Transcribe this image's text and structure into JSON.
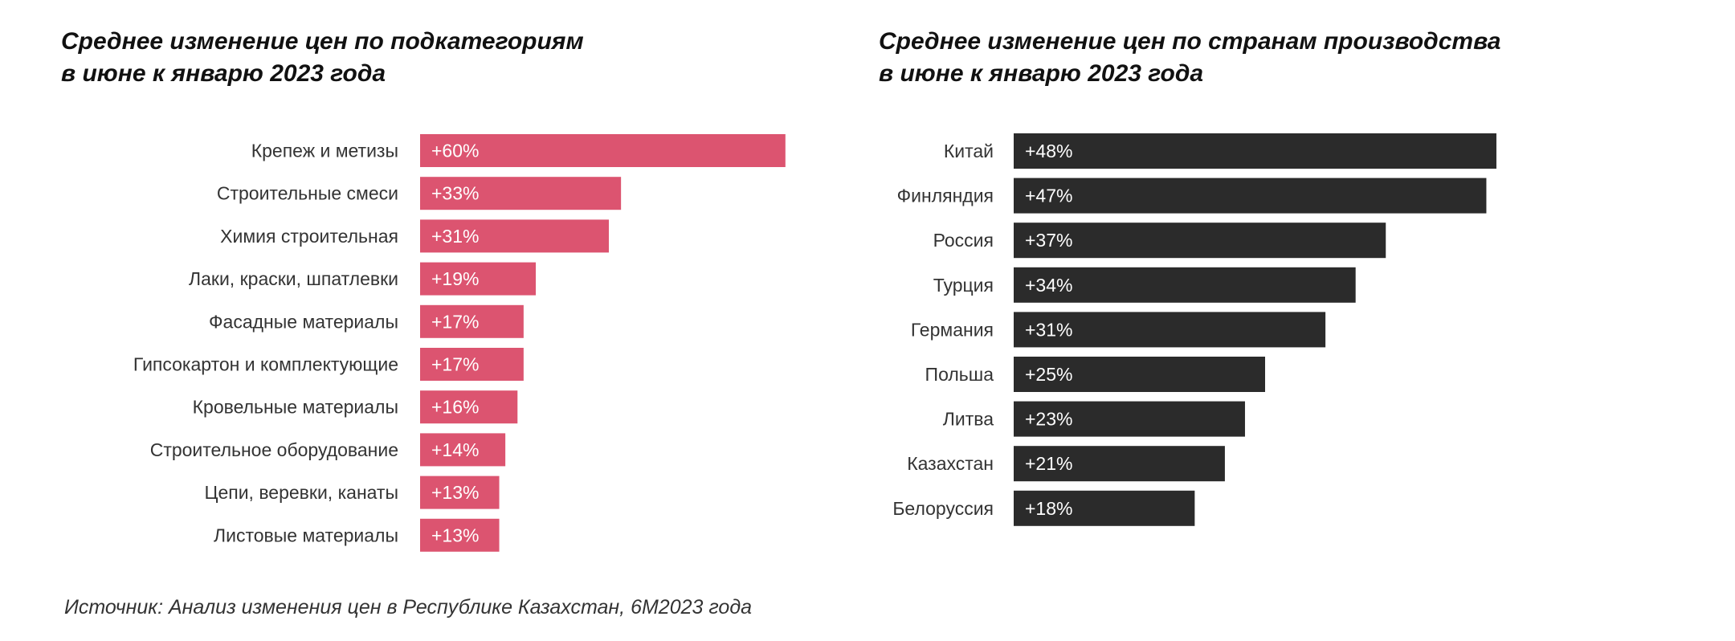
{
  "chart_data": [
    {
      "type": "bar",
      "orientation": "horizontal",
      "title_line1": "Среднее изменение цен по подкатегориям",
      "title_line2": "в июне к январю 2023 года",
      "categories": [
        "Крепеж и метизы",
        "Строительные смеси",
        "Химия строительная",
        "Лаки, краски, шпатлевки",
        "Фасадные материалы",
        "Гипсокартон и комплектующие",
        "Кровельные материалы",
        "Строительное оборудование",
        "Цепи, веревки, канаты",
        "Листовые материалы"
      ],
      "values": [
        60,
        33,
        31,
        19,
        17,
        17,
        16,
        14,
        13,
        13
      ],
      "labels": [
        "+60%",
        "+33%",
        "+31%",
        "+19%",
        "+17%",
        "+17%",
        "+16%",
        "+14%",
        "+13%",
        "+13%"
      ],
      "unit": "%",
      "color": "#dc5470",
      "grid": false
    },
    {
      "type": "bar",
      "orientation": "horizontal",
      "title_line1": "Среднее изменение цен по странам производства",
      "title_line2": "в июне к январю 2023 года",
      "categories": [
        "Китай",
        "Финляндия",
        "Россия",
        "Турция",
        "Германия",
        "Польша",
        "Литва",
        "Казахстан",
        "Белоруссия"
      ],
      "values": [
        48,
        47,
        37,
        34,
        31,
        25,
        23,
        21,
        18
      ],
      "labels": [
        "+48%",
        "+47%",
        "+37%",
        "+34%",
        "+31%",
        "+25%",
        "+23%",
        "+21%",
        "+18%"
      ],
      "unit": "%",
      "color": "#2b2b2b",
      "grid": false
    }
  ],
  "source": "Источник: Анализ изменения цен в Республике Казахстан, 6М2023 года"
}
